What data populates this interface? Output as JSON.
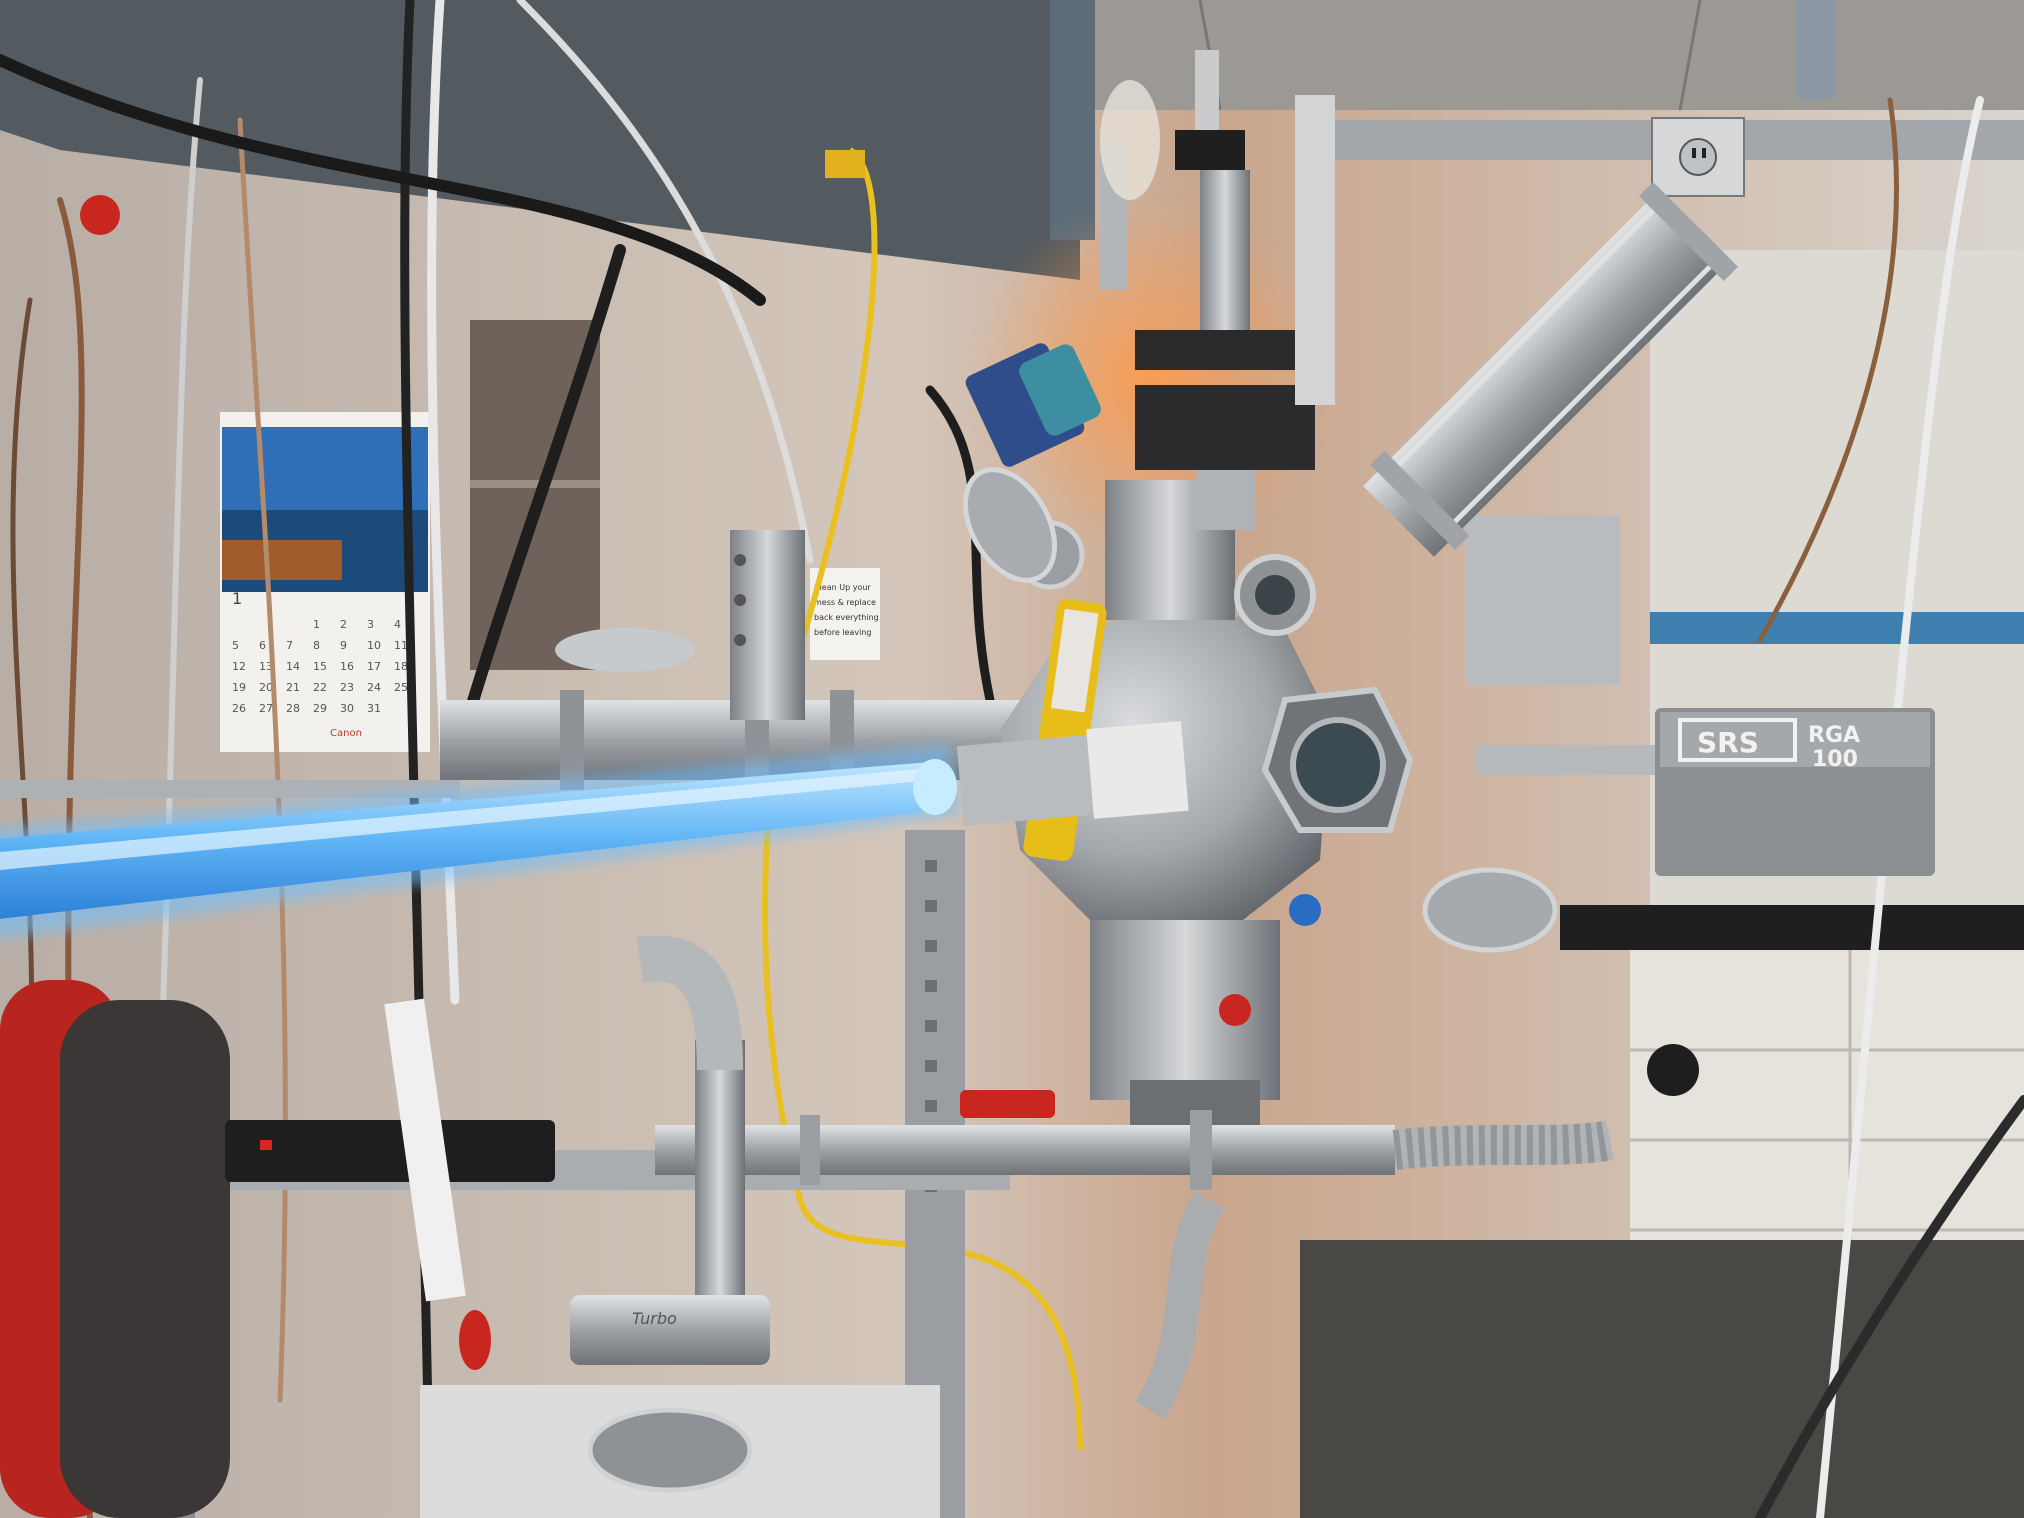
{
  "rga": {
    "brand": "SRS",
    "line1": "RGA",
    "line2": "100"
  },
  "calendar": {
    "month_number": "1",
    "brand": "Canon",
    "days": [
      "1",
      "2",
      "3",
      "4",
      "5",
      "6",
      "7",
      "8",
      "9",
      "10",
      "11",
      "12",
      "13",
      "14",
      "15",
      "16",
      "17",
      "18",
      "19",
      "20",
      "21",
      "22",
      "23",
      "24",
      "25",
      "26",
      "27",
      "28",
      "29",
      "30",
      "31"
    ]
  },
  "sign": {
    "line1": "Clean Up your",
    "line2": "mess & replace",
    "line3": "back everything",
    "line4": "before leaving"
  },
  "pipe_label": "Turbo",
  "colors": {
    "wall": "#d8d0c6",
    "steel": "#a9acb0",
    "beam": "#4d5257",
    "glow": "#7ec8ff",
    "yellow_cable": "#e8c020",
    "red_valve": "#c8261f",
    "rga_box": "#8c8f92",
    "cabinet": "#e4e0da"
  },
  "icons": [
    "electrical-outlet-icon",
    "red-valve-handle-icon",
    "blue-vacuum-gauge-icon"
  ]
}
